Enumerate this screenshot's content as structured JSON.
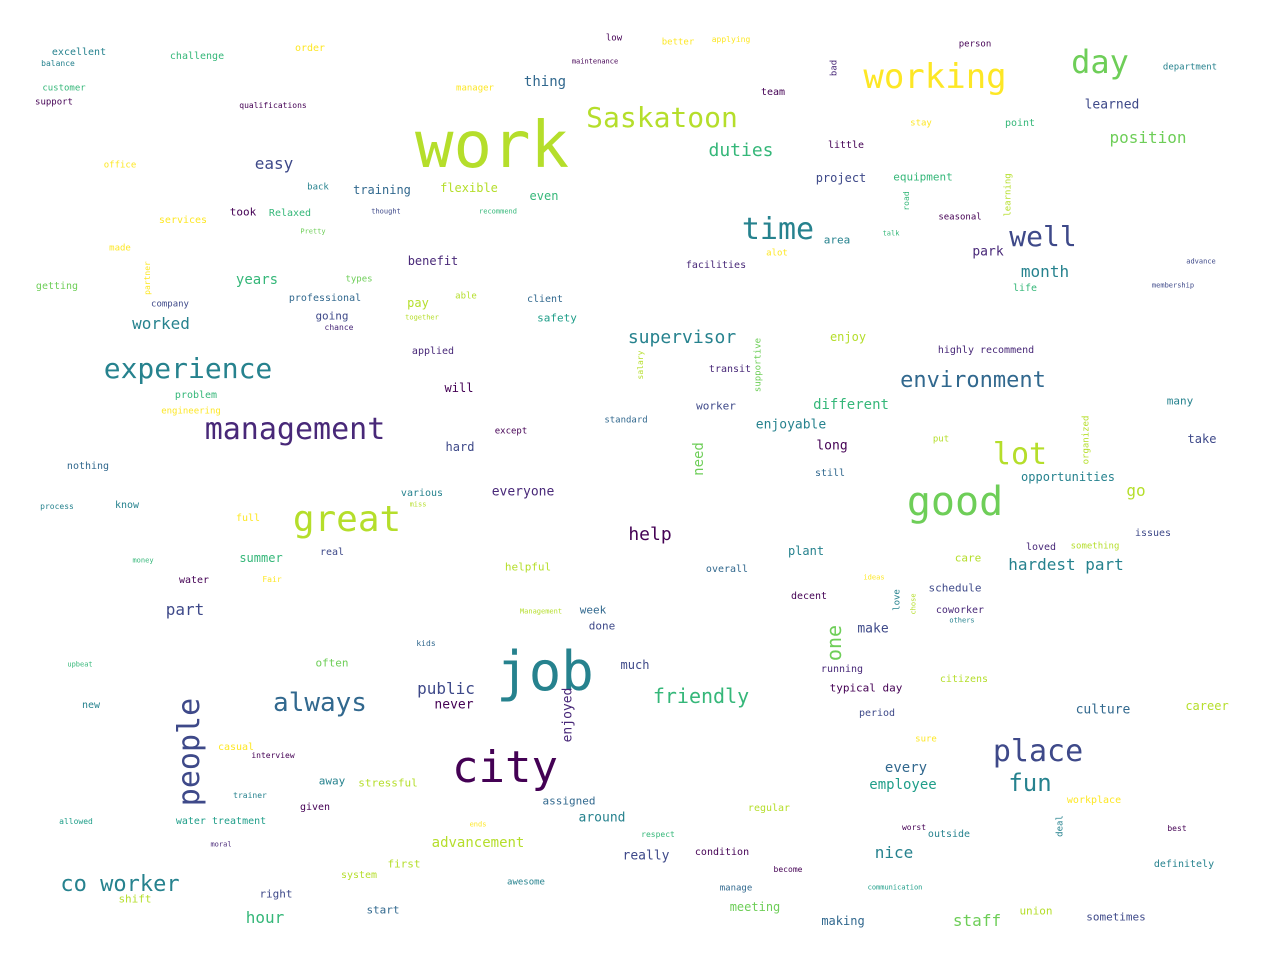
{
  "palette": [
    "#440154",
    "#482878",
    "#3e4989",
    "#31688e",
    "#26828e",
    "#1f9e89",
    "#35b779",
    "#6ece58",
    "#b5de2b",
    "#fde725"
  ],
  "words": [
    {
      "text": "work",
      "c": "#b5de2b"
    },
    {
      "text": "job",
      "c": "#26828e"
    },
    {
      "text": "city",
      "c": "#440154"
    },
    {
      "text": "good",
      "c": "#6ece58"
    },
    {
      "text": "great",
      "c": "#b5de2b"
    },
    {
      "text": "management",
      "c": "#482878"
    },
    {
      "text": "people",
      "c": "#3e4989"
    },
    {
      "text": "working",
      "c": "#fde725"
    },
    {
      "text": "experience",
      "c": "#26828e"
    },
    {
      "text": "place",
      "c": "#3e4989"
    },
    {
      "text": "time",
      "c": "#26828e"
    },
    {
      "text": "Saskatoon",
      "c": "#b5de2b"
    },
    {
      "text": "always",
      "c": "#31688e"
    },
    {
      "text": "day",
      "c": "#6ece58"
    },
    {
      "text": "well",
      "c": "#3e4989"
    },
    {
      "text": "lot",
      "c": "#b5de2b"
    },
    {
      "text": "environment",
      "c": "#31688e"
    },
    {
      "text": "fun",
      "c": "#26828e"
    },
    {
      "text": "co worker",
      "c": "#26828e"
    },
    {
      "text": "friendly",
      "c": "#35b779"
    },
    {
      "text": "supervisor",
      "c": "#26828e"
    },
    {
      "text": "duties",
      "c": "#35b779"
    },
    {
      "text": "help",
      "c": "#440154"
    },
    {
      "text": "public",
      "c": "#3e4989"
    },
    {
      "text": "one",
      "c": "#6ece58"
    },
    {
      "text": "nice",
      "c": "#26828e"
    },
    {
      "text": "part",
      "c": "#3e4989"
    },
    {
      "text": "position",
      "c": "#6ece58"
    },
    {
      "text": "hardest part",
      "c": "#26828e"
    },
    {
      "text": "hour",
      "c": "#35b779"
    },
    {
      "text": "worked",
      "c": "#26828e"
    },
    {
      "text": "easy",
      "c": "#3e4989"
    },
    {
      "text": "month",
      "c": "#26828e"
    },
    {
      "text": "go",
      "c": "#b5de2b"
    },
    {
      "text": "advancement",
      "c": "#b5de2b"
    },
    {
      "text": "staff",
      "c": "#6ece58"
    },
    {
      "text": "need",
      "c": "#6ece58"
    },
    {
      "text": "enjoyed",
      "c": "#482878"
    },
    {
      "text": "every",
      "c": "#31688e"
    },
    {
      "text": "employee",
      "c": "#1f9e89"
    },
    {
      "text": "thing",
      "c": "#31688e"
    },
    {
      "text": "learned",
      "c": "#3e4989"
    },
    {
      "text": "years",
      "c": "#35b779"
    },
    {
      "text": "enjoyable",
      "c": "#26828e"
    },
    {
      "text": "different",
      "c": "#35b779"
    },
    {
      "text": "training",
      "c": "#31688e"
    },
    {
      "text": "flexible",
      "c": "#b5de2b"
    },
    {
      "text": "everyone",
      "c": "#482878"
    },
    {
      "text": "much",
      "c": "#3e4989"
    },
    {
      "text": "long",
      "c": "#440154"
    },
    {
      "text": "make",
      "c": "#3e4989"
    },
    {
      "text": "culture",
      "c": "#31688e"
    },
    {
      "text": "around",
      "c": "#26828e"
    },
    {
      "text": "really",
      "c": "#3e4989"
    },
    {
      "text": "never",
      "c": "#440154"
    },
    {
      "text": "summer",
      "c": "#35b779"
    },
    {
      "text": "meeting",
      "c": "#6ece58"
    },
    {
      "text": "making",
      "c": "#31688e"
    },
    {
      "text": "opportunities",
      "c": "#26828e"
    },
    {
      "text": "enjoy",
      "c": "#b5de2b"
    },
    {
      "text": "project",
      "c": "#3e4989"
    },
    {
      "text": "equipment",
      "c": "#35b779"
    },
    {
      "text": "area",
      "c": "#26828e"
    },
    {
      "text": "park",
      "c": "#482878"
    },
    {
      "text": "benefit",
      "c": "#482878"
    },
    {
      "text": "pay",
      "c": "#b5de2b"
    },
    {
      "text": "will",
      "c": "#440154"
    },
    {
      "text": "hard",
      "c": "#3e4989"
    },
    {
      "text": "even",
      "c": "#35b779"
    },
    {
      "text": "took",
      "c": "#440154"
    },
    {
      "text": "worker",
      "c": "#3e4989"
    },
    {
      "text": "plant",
      "c": "#26828e"
    },
    {
      "text": "schedule",
      "c": "#3e4989"
    },
    {
      "text": "union",
      "c": "#b5de2b"
    },
    {
      "text": "sometimes",
      "c": "#3e4989"
    },
    {
      "text": "career",
      "c": "#b5de2b"
    },
    {
      "text": "take",
      "c": "#3e4989"
    },
    {
      "text": "many",
      "c": "#26828e"
    },
    {
      "text": "week",
      "c": "#31688e"
    },
    {
      "text": "done",
      "c": "#3e4989"
    },
    {
      "text": "facilities",
      "c": "#482878"
    },
    {
      "text": "little",
      "c": "#440154"
    },
    {
      "text": "team",
      "c": "#440154"
    },
    {
      "text": "department",
      "c": "#26828e"
    },
    {
      "text": "person",
      "c": "#440154"
    },
    {
      "text": "low",
      "c": "#440154"
    },
    {
      "text": "better",
      "c": "#fde725"
    },
    {
      "text": "applying",
      "c": "#fde725"
    },
    {
      "text": "maintenance",
      "c": "#440154"
    },
    {
      "text": "bad",
      "c": "#482878"
    },
    {
      "text": "order",
      "c": "#fde725"
    },
    {
      "text": "challenge",
      "c": "#35b779"
    },
    {
      "text": "excellent",
      "c": "#26828e"
    },
    {
      "text": "balance",
      "c": "#26828e"
    },
    {
      "text": "customer",
      "c": "#35b779"
    },
    {
      "text": "support",
      "c": "#440154"
    },
    {
      "text": "qualifications",
      "c": "#440154"
    },
    {
      "text": "manager",
      "c": "#fde725"
    },
    {
      "text": "office",
      "c": "#fde725"
    },
    {
      "text": "back",
      "c": "#26828e"
    },
    {
      "text": "thought",
      "c": "#3e4989"
    },
    {
      "text": "recommend",
      "c": "#35b779"
    },
    {
      "text": "services",
      "c": "#fde725"
    },
    {
      "text": "Relaxed",
      "c": "#35b779"
    },
    {
      "text": "Pretty",
      "c": "#6ece58"
    },
    {
      "text": "made",
      "c": "#fde725"
    },
    {
      "text": "getting",
      "c": "#6ece58"
    },
    {
      "text": "partner",
      "c": "#fde725"
    },
    {
      "text": "types",
      "c": "#6ece58"
    },
    {
      "text": "company",
      "c": "#3e4989"
    },
    {
      "text": "professional",
      "c": "#31688e"
    },
    {
      "text": "going",
      "c": "#3e4989"
    },
    {
      "text": "chance",
      "c": "#482878"
    },
    {
      "text": "together",
      "c": "#b5de2b"
    },
    {
      "text": "able",
      "c": "#b5de2b"
    },
    {
      "text": "client",
      "c": "#31688e"
    },
    {
      "text": "safety",
      "c": "#1f9e89"
    },
    {
      "text": "applied",
      "c": "#482878"
    },
    {
      "text": "problem",
      "c": "#35b779"
    },
    {
      "text": "engineering",
      "c": "#fde725"
    },
    {
      "text": "nothing",
      "c": "#31688e"
    },
    {
      "text": "process",
      "c": "#26828e"
    },
    {
      "text": "know",
      "c": "#26828e"
    },
    {
      "text": "full",
      "c": "#fde725"
    },
    {
      "text": "various",
      "c": "#26828e"
    },
    {
      "text": "miss",
      "c": "#b5de2b"
    },
    {
      "text": "real",
      "c": "#3e4989"
    },
    {
      "text": "money",
      "c": "#35b779"
    },
    {
      "text": "water",
      "c": "#440154"
    },
    {
      "text": "Fair",
      "c": "#fde725"
    },
    {
      "text": "helpful",
      "c": "#b5de2b"
    },
    {
      "text": "overall",
      "c": "#31688e"
    },
    {
      "text": "except",
      "c": "#440154"
    },
    {
      "text": "standard",
      "c": "#31688e"
    },
    {
      "text": "salary",
      "c": "#b5de2b"
    },
    {
      "text": "supportive",
      "c": "#6ece58"
    },
    {
      "text": "transit",
      "c": "#482878"
    },
    {
      "text": "stay",
      "c": "#fde725"
    },
    {
      "text": "point",
      "c": "#35b779"
    },
    {
      "text": "road",
      "c": "#35b779"
    },
    {
      "text": "seasonal",
      "c": "#440154"
    },
    {
      "text": "talk",
      "c": "#35b779"
    },
    {
      "text": "alot",
      "c": "#fde725"
    },
    {
      "text": "learning",
      "c": "#b5de2b"
    },
    {
      "text": "advance",
      "c": "#3e4989"
    },
    {
      "text": "membership",
      "c": "#3e4989"
    },
    {
      "text": "life",
      "c": "#35b779"
    },
    {
      "text": "highly recommend",
      "c": "#482878"
    },
    {
      "text": "organized",
      "c": "#b5de2b"
    },
    {
      "text": "put",
      "c": "#b5de2b"
    },
    {
      "text": "still",
      "c": "#31688e"
    },
    {
      "text": "issues",
      "c": "#3e4989"
    },
    {
      "text": "loved",
      "c": "#482878"
    },
    {
      "text": "something",
      "c": "#b5de2b"
    },
    {
      "text": "care",
      "c": "#b5de2b"
    },
    {
      "text": "ideas",
      "c": "#fde725"
    },
    {
      "text": "love",
      "c": "#26828e"
    },
    {
      "text": "chose",
      "c": "#b5de2b"
    },
    {
      "text": "coworker",
      "c": "#482878"
    },
    {
      "text": "others",
      "c": "#26828e"
    },
    {
      "text": "decent",
      "c": "#440154"
    },
    {
      "text": "Management",
      "c": "#b5de2b"
    },
    {
      "text": "kids",
      "c": "#31688e"
    },
    {
      "text": "upbeat",
      "c": "#35b779"
    },
    {
      "text": "often",
      "c": "#6ece58"
    },
    {
      "text": "new",
      "c": "#26828e"
    },
    {
      "text": "running",
      "c": "#482878"
    },
    {
      "text": "typical day",
      "c": "#440154"
    },
    {
      "text": "citizens",
      "c": "#b5de2b"
    },
    {
      "text": "period",
      "c": "#3e4989"
    },
    {
      "text": "sure",
      "c": "#fde725"
    },
    {
      "text": "casual",
      "c": "#fde725"
    },
    {
      "text": "interview",
      "c": "#440154"
    },
    {
      "text": "away",
      "c": "#26828e"
    },
    {
      "text": "stressful",
      "c": "#b5de2b"
    },
    {
      "text": "trainer",
      "c": "#26828e"
    },
    {
      "text": "given",
      "c": "#440154"
    },
    {
      "text": "allowed",
      "c": "#1f9e89"
    },
    {
      "text": "water treatment",
      "c": "#1f9e89"
    },
    {
      "text": "assigned",
      "c": "#31688e"
    },
    {
      "text": "regular",
      "c": "#b5de2b"
    },
    {
      "text": "workplace",
      "c": "#fde725"
    },
    {
      "text": "deal",
      "c": "#26828e"
    },
    {
      "text": "best",
      "c": "#440154"
    },
    {
      "text": "worst",
      "c": "#440154"
    },
    {
      "text": "outside",
      "c": "#26828e"
    },
    {
      "text": "ends",
      "c": "#fde725"
    },
    {
      "text": "respect",
      "c": "#35b779"
    },
    {
      "text": "moral",
      "c": "#482878"
    },
    {
      "text": "first",
      "c": "#b5de2b"
    },
    {
      "text": "system",
      "c": "#b5de2b"
    },
    {
      "text": "condition",
      "c": "#440154"
    },
    {
      "text": "become",
      "c": "#440154"
    },
    {
      "text": "definitely",
      "c": "#26828e"
    },
    {
      "text": "communication",
      "c": "#1f9e89"
    },
    {
      "text": "manage",
      "c": "#31688e"
    },
    {
      "text": "awesome",
      "c": "#26828e"
    },
    {
      "text": "right",
      "c": "#3e4989"
    },
    {
      "text": "shift",
      "c": "#b5de2b"
    },
    {
      "text": "start",
      "c": "#31688e"
    }
  ]
}
